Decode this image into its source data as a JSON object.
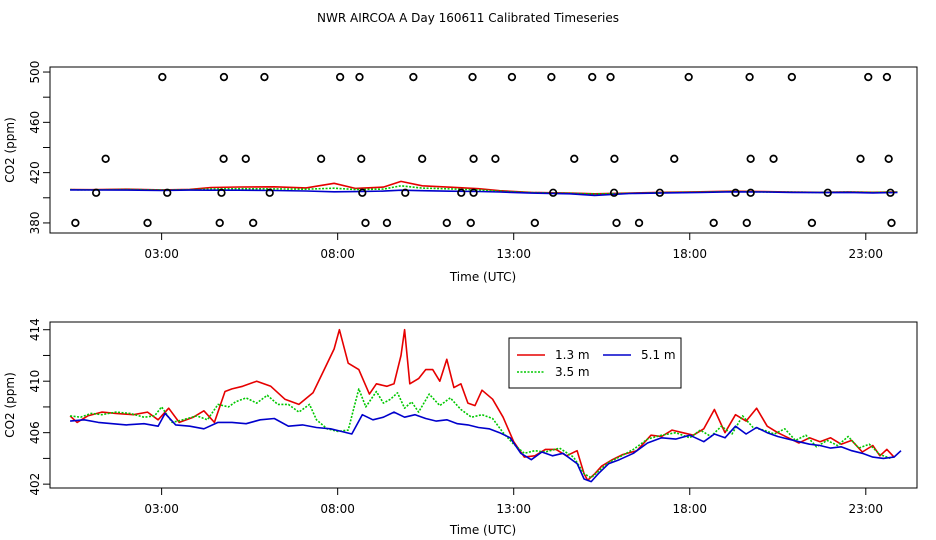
{
  "figure_title": "NWR AIRCOA A  Day 160611  Calibrated Timeseries",
  "colors": {
    "s13": "#e60000",
    "s35": "#00c800",
    "s51": "#0000cc"
  },
  "chart_data": [
    {
      "type": "scatter",
      "title": "",
      "xlabel": "Time (UTC)",
      "ylabel": "CO2 (ppm)",
      "xlim": [
        0,
        24
      ],
      "ylim": [
        372,
        504
      ],
      "xticks": [
        3,
        8,
        13,
        18,
        23
      ],
      "xtick_labels": [
        "03:00",
        "08:00",
        "13:00",
        "18:00",
        "23:00"
      ],
      "yticks": [
        380,
        420,
        460,
        500
      ],
      "ytick_labels": [
        "380",
        "420",
        "460",
        "500"
      ],
      "yminor_ticks": [
        400,
        440,
        480
      ],
      "high_flags_x": [
        3.02,
        4.77,
        5.92,
        8.07,
        8.62,
        10.15,
        11.83,
        12.95,
        14.07,
        15.23,
        15.75,
        17.97,
        19.7,
        20.9,
        23.07,
        23.6
      ],
      "high_flags_y": 496,
      "mid_flags_x": [
        1.41,
        4.76,
        5.39,
        7.53,
        8.67,
        10.4,
        11.86,
        12.48,
        14.72,
        15.86,
        17.56,
        19.73,
        20.38,
        22.85,
        23.65
      ],
      "mid_flags_y": 431,
      "ref_flags_x": [
        1.14,
        3.16,
        4.7,
        6.07,
        8.7,
        9.92,
        11.51,
        11.86,
        14.12,
        15.85,
        17.15,
        19.3,
        19.73,
        21.92,
        23.7
      ],
      "ref_flags_y": 404,
      "low_flags_x": [
        0.55,
        2.6,
        4.65,
        5.6,
        8.79,
        9.4,
        11.1,
        11.78,
        13.6,
        15.92,
        16.56,
        18.68,
        19.62,
        21.47,
        23.73
      ],
      "low_flags_y": 380,
      "series": [
        {
          "name": "1.3 m",
          "color": "#e60000",
          "x": [
            0.4,
            1,
            2,
            3,
            3.8,
            4.4,
            5.2,
            6.2,
            7.1,
            7.9,
            8.5,
            9.3,
            9.8,
            10.4,
            11.2,
            12,
            12.6,
            13.5,
            14.6,
            15.3,
            16.3,
            17.3,
            18.3,
            19.2,
            20.1,
            20.9,
            21.7,
            22.5,
            23.2,
            23.9
          ],
          "y": [
            406.5,
            406.4,
            406.8,
            406.3,
            406.7,
            408.2,
            408.6,
            408.7,
            407.9,
            411.5,
            407.5,
            408.5,
            413.0,
            409.5,
            408.4,
            407.2,
            405.6,
            404.3,
            403.8,
            403.2,
            403.8,
            404.4,
            404.8,
            405.2,
            404.9,
            404.6,
            404.4,
            404.7,
            404.4,
            404.6
          ]
        },
        {
          "name": "3.5 m",
          "color": "#00c800",
          "x": [
            0.4,
            1,
            2,
            3,
            3.8,
            4.4,
            5.2,
            6.2,
            7.1,
            7.9,
            8.5,
            9.3,
            9.8,
            10.4,
            11.2,
            12,
            12.6,
            13.5,
            14.6,
            15.3,
            16.3,
            17.3,
            18.3,
            19.2,
            20.1,
            20.9,
            21.7,
            22.5,
            23.2,
            23.9
          ],
          "y": [
            406.4,
            406.3,
            406.6,
            406.2,
            406.4,
            407.0,
            407.2,
            407.1,
            406.8,
            407.6,
            406.6,
            406.9,
            409.5,
            407.7,
            407.1,
            406.3,
            405.2,
            404.1,
            403.6,
            403.0,
            403.6,
            404.1,
            404.5,
            405.0,
            404.7,
            404.5,
            404.3,
            404.6,
            404.3,
            404.5
          ]
        },
        {
          "name": "5.1 m",
          "color": "#0000cc",
          "x": [
            0.4,
            1,
            2,
            3,
            3.8,
            4.4,
            5.2,
            6.2,
            7.1,
            7.9,
            8.5,
            9.3,
            9.8,
            10.4,
            11.2,
            12,
            12.6,
            13.5,
            14.6,
            15.3,
            16.3,
            17.3,
            18.3,
            19.2,
            20.1,
            20.9,
            21.7,
            22.5,
            23.2,
            23.9
          ],
          "y": [
            406.3,
            406.2,
            406.1,
            405.8,
            406.1,
            406.0,
            406.0,
            405.8,
            405.4,
            404.8,
            404.9,
            405.3,
            406.0,
            405.6,
            405.2,
            405.0,
            404.6,
            403.7,
            403.2,
            401.9,
            403.4,
            403.9,
            404.2,
            404.8,
            404.6,
            404.3,
            404.1,
            404.3,
            403.9,
            404.2
          ]
        }
      ]
    },
    {
      "type": "line",
      "title": "",
      "xlabel": "Time (UTC)",
      "ylabel": "CO2 (ppm)",
      "xlim": [
        0,
        24
      ],
      "ylim": [
        401.7,
        414.6
      ],
      "xticks": [
        3,
        8,
        13,
        18,
        23
      ],
      "xtick_labels": [
        "03:00",
        "08:00",
        "13:00",
        "18:00",
        "23:00"
      ],
      "yticks": [
        402,
        406,
        410,
        414
      ],
      "ytick_labels": [
        "402",
        "406",
        "410",
        "414"
      ],
      "yminor_ticks": [
        404,
        408,
        412
      ],
      "legend": {
        "position": "top-center",
        "entries": [
          "1.3 m",
          "5.1 m",
          "3.5 m"
        ]
      },
      "series": [
        {
          "name": "1.3 m",
          "color": "#e60000",
          "x": [
            0.4,
            0.6,
            0.9,
            1.3,
            1.7,
            2.2,
            2.6,
            2.9,
            3.2,
            3.5,
            3.9,
            4.2,
            4.5,
            4.8,
            5.0,
            5.3,
            5.7,
            6.1,
            6.5,
            6.9,
            7.3,
            7.6,
            7.9,
            8.05,
            8.3,
            8.6,
            8.9,
            9.1,
            9.4,
            9.6,
            9.8,
            9.9,
            10.05,
            10.3,
            10.5,
            10.7,
            10.9,
            11.1,
            11.3,
            11.5,
            11.7,
            11.9,
            12.1,
            12.4,
            12.7,
            13.0,
            13.3,
            13.6,
            13.9,
            14.2,
            14.5,
            14.8,
            15.0,
            15.1,
            15.3,
            15.5,
            15.8,
            16.1,
            16.5,
            16.9,
            17.2,
            17.5,
            17.8,
            18.1,
            18.4,
            18.7,
            19.0,
            19.3,
            19.6,
            19.9,
            20.2,
            20.5,
            20.8,
            21.1,
            21.4,
            21.7,
            22.0,
            22.3,
            22.6,
            22.9,
            23.2,
            23.4,
            23.6,
            23.8
          ],
          "y": [
            407.3,
            406.8,
            407.3,
            407.6,
            407.5,
            407.4,
            407.6,
            407.0,
            407.9,
            406.8,
            407.2,
            407.7,
            406.8,
            409.2,
            409.4,
            409.6,
            410.0,
            409.6,
            408.6,
            408.2,
            409.1,
            410.8,
            412.5,
            414.0,
            411.4,
            410.9,
            409.0,
            409.8,
            409.6,
            409.8,
            412.0,
            414.0,
            409.8,
            410.2,
            410.9,
            410.9,
            410.0,
            411.7,
            409.5,
            409.8,
            408.3,
            408.1,
            409.3,
            408.6,
            407.2,
            405.3,
            404.1,
            404.2,
            404.7,
            404.7,
            404.2,
            404.6,
            402.8,
            402.3,
            402.8,
            403.4,
            403.9,
            404.3,
            404.6,
            405.8,
            405.7,
            406.2,
            406.0,
            405.8,
            406.3,
            407.8,
            406.0,
            407.4,
            406.9,
            407.9,
            406.5,
            406.0,
            405.6,
            405.2,
            405.6,
            405.3,
            405.6,
            405.1,
            405.4,
            404.5,
            405.0,
            404.2,
            404.7,
            404.1
          ]
        },
        {
          "name": "3.5 m",
          "color": "#00c800",
          "x": [
            0.4,
            0.7,
            1.0,
            1.3,
            1.7,
            2.1,
            2.5,
            2.8,
            3.0,
            3.3,
            3.6,
            4.0,
            4.3,
            4.6,
            4.9,
            5.1,
            5.4,
            5.7,
            6.0,
            6.3,
            6.6,
            6.9,
            7.2,
            7.4,
            7.7,
            8.0,
            8.3,
            8.6,
            8.8,
            9.1,
            9.3,
            9.5,
            9.7,
            9.9,
            10.1,
            10.3,
            10.6,
            10.9,
            11.2,
            11.5,
            11.8,
            12.1,
            12.4,
            12.7,
            13.0,
            13.3,
            13.6,
            13.9,
            14.3,
            14.7,
            15.0,
            15.2,
            15.4,
            15.7,
            16.0,
            16.4,
            16.8,
            17.2,
            17.6,
            18.0,
            18.3,
            18.6,
            18.9,
            19.2,
            19.5,
            19.8,
            20.1,
            20.4,
            20.7,
            21.0,
            21.3,
            21.6,
            21.9,
            22.2,
            22.5,
            22.8,
            23.1,
            23.4,
            23.7
          ],
          "y": [
            407.3,
            407.2,
            407.5,
            407.4,
            407.6,
            407.5,
            407.2,
            407.3,
            408.0,
            406.8,
            407.0,
            407.3,
            407.0,
            408.2,
            408.0,
            408.4,
            408.7,
            408.3,
            408.9,
            408.2,
            408.2,
            407.6,
            408.2,
            407.0,
            406.3,
            406.1,
            406.2,
            409.4,
            408.0,
            409.2,
            408.3,
            408.6,
            409.1,
            407.9,
            408.4,
            407.6,
            409.0,
            408.1,
            408.7,
            407.8,
            407.2,
            407.4,
            407.1,
            406.0,
            405.1,
            404.4,
            404.6,
            404.5,
            404.8,
            404.1,
            402.8,
            402.5,
            403.0,
            403.7,
            404.1,
            404.7,
            405.5,
            405.8,
            406.0,
            405.6,
            406.2,
            405.7,
            406.5,
            405.9,
            407.3,
            406.4,
            406.2,
            405.9,
            406.3,
            405.4,
            405.8,
            404.9,
            405.4,
            405.0,
            405.7,
            404.8,
            405.1,
            404.3,
            404.0
          ]
        },
        {
          "name": "5.1 m",
          "color": "#0000cc",
          "x": [
            0.4,
            0.8,
            1.2,
            1.6,
            2.0,
            2.5,
            2.9,
            3.1,
            3.4,
            3.8,
            4.2,
            4.6,
            5.0,
            5.4,
            5.8,
            6.2,
            6.6,
            7.0,
            7.4,
            7.8,
            8.1,
            8.4,
            8.7,
            9.0,
            9.3,
            9.6,
            9.9,
            10.2,
            10.5,
            10.8,
            11.1,
            11.4,
            11.7,
            12.0,
            12.3,
            12.6,
            12.9,
            13.2,
            13.5,
            13.8,
            14.1,
            14.4,
            14.8,
            15.0,
            15.2,
            15.4,
            15.7,
            16.0,
            16.4,
            16.8,
            17.2,
            17.6,
            18.0,
            18.4,
            18.7,
            19.0,
            19.3,
            19.6,
            19.9,
            20.2,
            20.5,
            20.8,
            21.1,
            21.4,
            21.7,
            22.0,
            22.3,
            22.6,
            22.9,
            23.2,
            23.5,
            23.8,
            24.0
          ],
          "y": [
            406.9,
            407.0,
            406.8,
            406.7,
            406.6,
            406.7,
            406.5,
            407.5,
            406.6,
            406.5,
            406.3,
            406.8,
            406.8,
            406.7,
            407.0,
            407.1,
            406.5,
            406.6,
            406.4,
            406.3,
            406.1,
            405.9,
            407.4,
            407.0,
            407.2,
            407.6,
            407.2,
            407.4,
            407.1,
            406.9,
            407.0,
            406.7,
            406.6,
            406.4,
            406.3,
            406.0,
            405.6,
            404.4,
            403.9,
            404.5,
            404.2,
            404.4,
            403.6,
            402.4,
            402.2,
            402.8,
            403.6,
            403.9,
            404.4,
            405.2,
            405.6,
            405.5,
            405.8,
            405.3,
            405.9,
            405.6,
            406.5,
            405.9,
            406.4,
            406.0,
            405.7,
            405.5,
            405.3,
            405.1,
            405.0,
            404.8,
            404.9,
            404.6,
            404.4,
            404.1,
            404.0,
            404.1,
            404.6
          ]
        }
      ]
    }
  ]
}
